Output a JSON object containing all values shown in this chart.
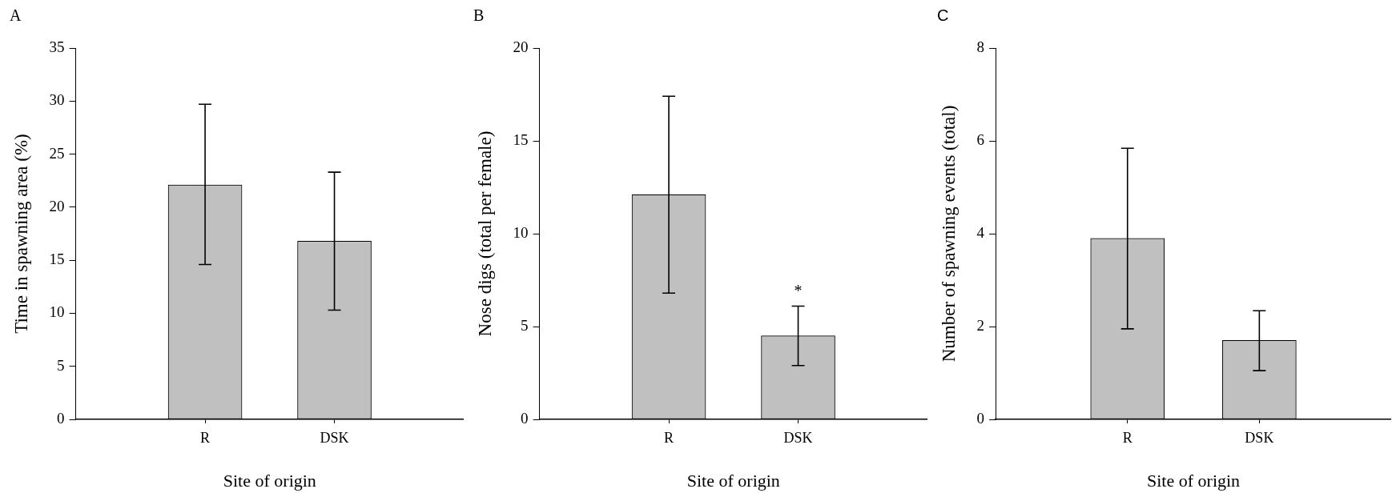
{
  "chart_data": [
    {
      "type": "bar",
      "title": "A",
      "xlabel": "Site of origin",
      "ylabel": "Time in spawning area (%)",
      "categories": [
        "R",
        "DSK"
      ],
      "values": [
        22.1,
        16.8
      ],
      "errors": [
        [
          14.6,
          29.7
        ],
        [
          10.3,
          23.3
        ]
      ],
      "color": "#c0c0c0",
      "ylim": [
        0,
        35
      ],
      "yticks": [
        0,
        5,
        10,
        15,
        20,
        25,
        30,
        35
      ],
      "grid": false,
      "legend": false
    },
    {
      "type": "bar",
      "title": "B",
      "xlabel": "Site of origin",
      "ylabel": "Nose digs (total per female)",
      "categories": [
        "R",
        "DSK"
      ],
      "values": [
        12.1,
        4.5
      ],
      "errors": [
        [
          6.8,
          17.4
        ],
        [
          2.9,
          6.1
        ]
      ],
      "color": "#c0c0c0",
      "ylim": [
        0,
        20
      ],
      "yticks": [
        0,
        5,
        10,
        15,
        20
      ],
      "grid": false,
      "legend": false,
      "annotations": [
        "*"
      ]
    },
    {
      "type": "bar",
      "title": "C",
      "xlabel": "Site of origin",
      "ylabel": "Number of spawning events (total)",
      "categories": [
        "R",
        "DSK"
      ],
      "values": [
        3.9,
        1.7
      ],
      "errors": [
        [
          1.95,
          5.84
        ],
        [
          1.05,
          2.34
        ]
      ],
      "color": "#c0c0c0",
      "ylim": [
        0,
        8
      ],
      "yticks": [
        0,
        2,
        4,
        6,
        8
      ],
      "grid": false,
      "legend": false
    }
  ]
}
